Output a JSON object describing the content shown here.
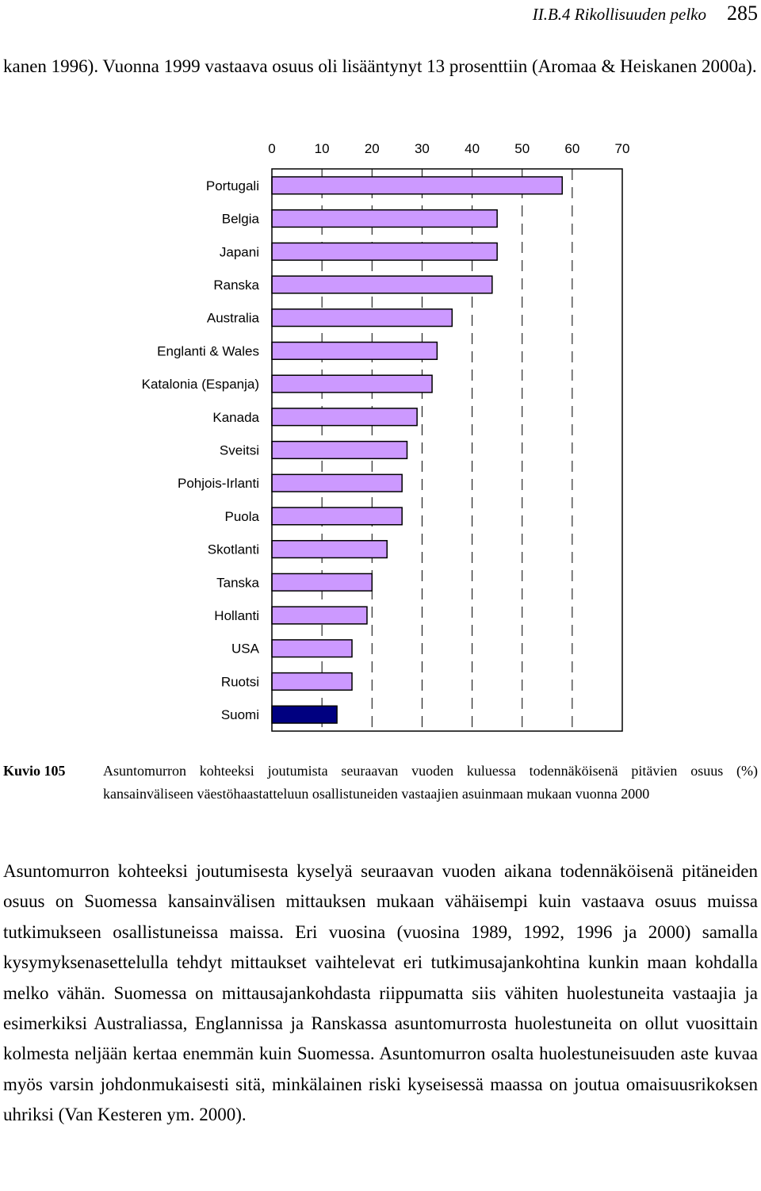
{
  "header": {
    "section": "II.B.4  Rikollisuuden pelko",
    "page_number": "285"
  },
  "intro_text": "kanen 1996). Vuonna 1999 vastaava osuus oli lisääntynyt 13 prosenttiin (Aromaa & Heiskanen 2000a).",
  "chart_data": {
    "type": "bar",
    "orientation": "horizontal",
    "categories": [
      "Portugali",
      "Belgia",
      "Japani",
      "Ranska",
      "Australia",
      "Englanti & Wales",
      "Katalonia (Espanja)",
      "Kanada",
      "Sveitsi",
      "Pohjois-Irlanti",
      "Puola",
      "Skotlanti",
      "Tanska",
      "Hollanti",
      "USA",
      "Ruotsi",
      "Suomi"
    ],
    "values": [
      58,
      45,
      45,
      44,
      36,
      33,
      32,
      29,
      27,
      26,
      26,
      23,
      20,
      19,
      16,
      16,
      13
    ],
    "highlight": "Suomi",
    "xlim": [
      0,
      70
    ],
    "xticks": [
      0,
      10,
      20,
      30,
      40,
      50,
      60,
      70
    ],
    "axis_position": "top",
    "grid": "dashed vertical",
    "legend": false,
    "colors": {
      "bar": "#cc99ff",
      "highlight": "#000080",
      "edge": "#000000"
    }
  },
  "caption": {
    "label": "Kuvio 105",
    "text": "Asuntomurron kohteeksi joutumista seuraavan vuoden kuluessa todennäköisenä pitävien osuus (%) kansainväliseen väestöhaastatteluun osallistuneiden vastaajien asuinmaan mukaan vuonna 2000"
  },
  "body_text": "Asuntomurron kohteeksi joutumisesta kyselyä seuraavan vuoden aikana todennäköisenä pitäneiden osuus on Suomessa kansainvälisen mittauksen mukaan vähäisempi kuin vastaava osuus muissa tutkimukseen osallistuneissa maissa. Eri vuosina (vuosina 1989, 1992, 1996 ja 2000) samalla kysymyksenasettelulla tehdyt mittaukset vaihtelevat eri tutkimusajankohtina kunkin maan kohdalla melko vähän. Suomessa on mittausajankohdasta riippumatta siis vähiten huolestuneita vastaajia ja esimerkiksi Australiassa, Englannissa ja Ranskassa asuntomurrosta huolestuneita on ollut vuosittain kolmesta neljään kertaa enemmän kuin Suomessa. Asuntomurron osalta huolestuneisuuden aste kuvaa myös varsin johdonmukaisesti sitä, minkälainen riski kyseisessä maassa on joutua omaisuusrikoksen uhriksi (Van Kesteren ym. 2000)."
}
